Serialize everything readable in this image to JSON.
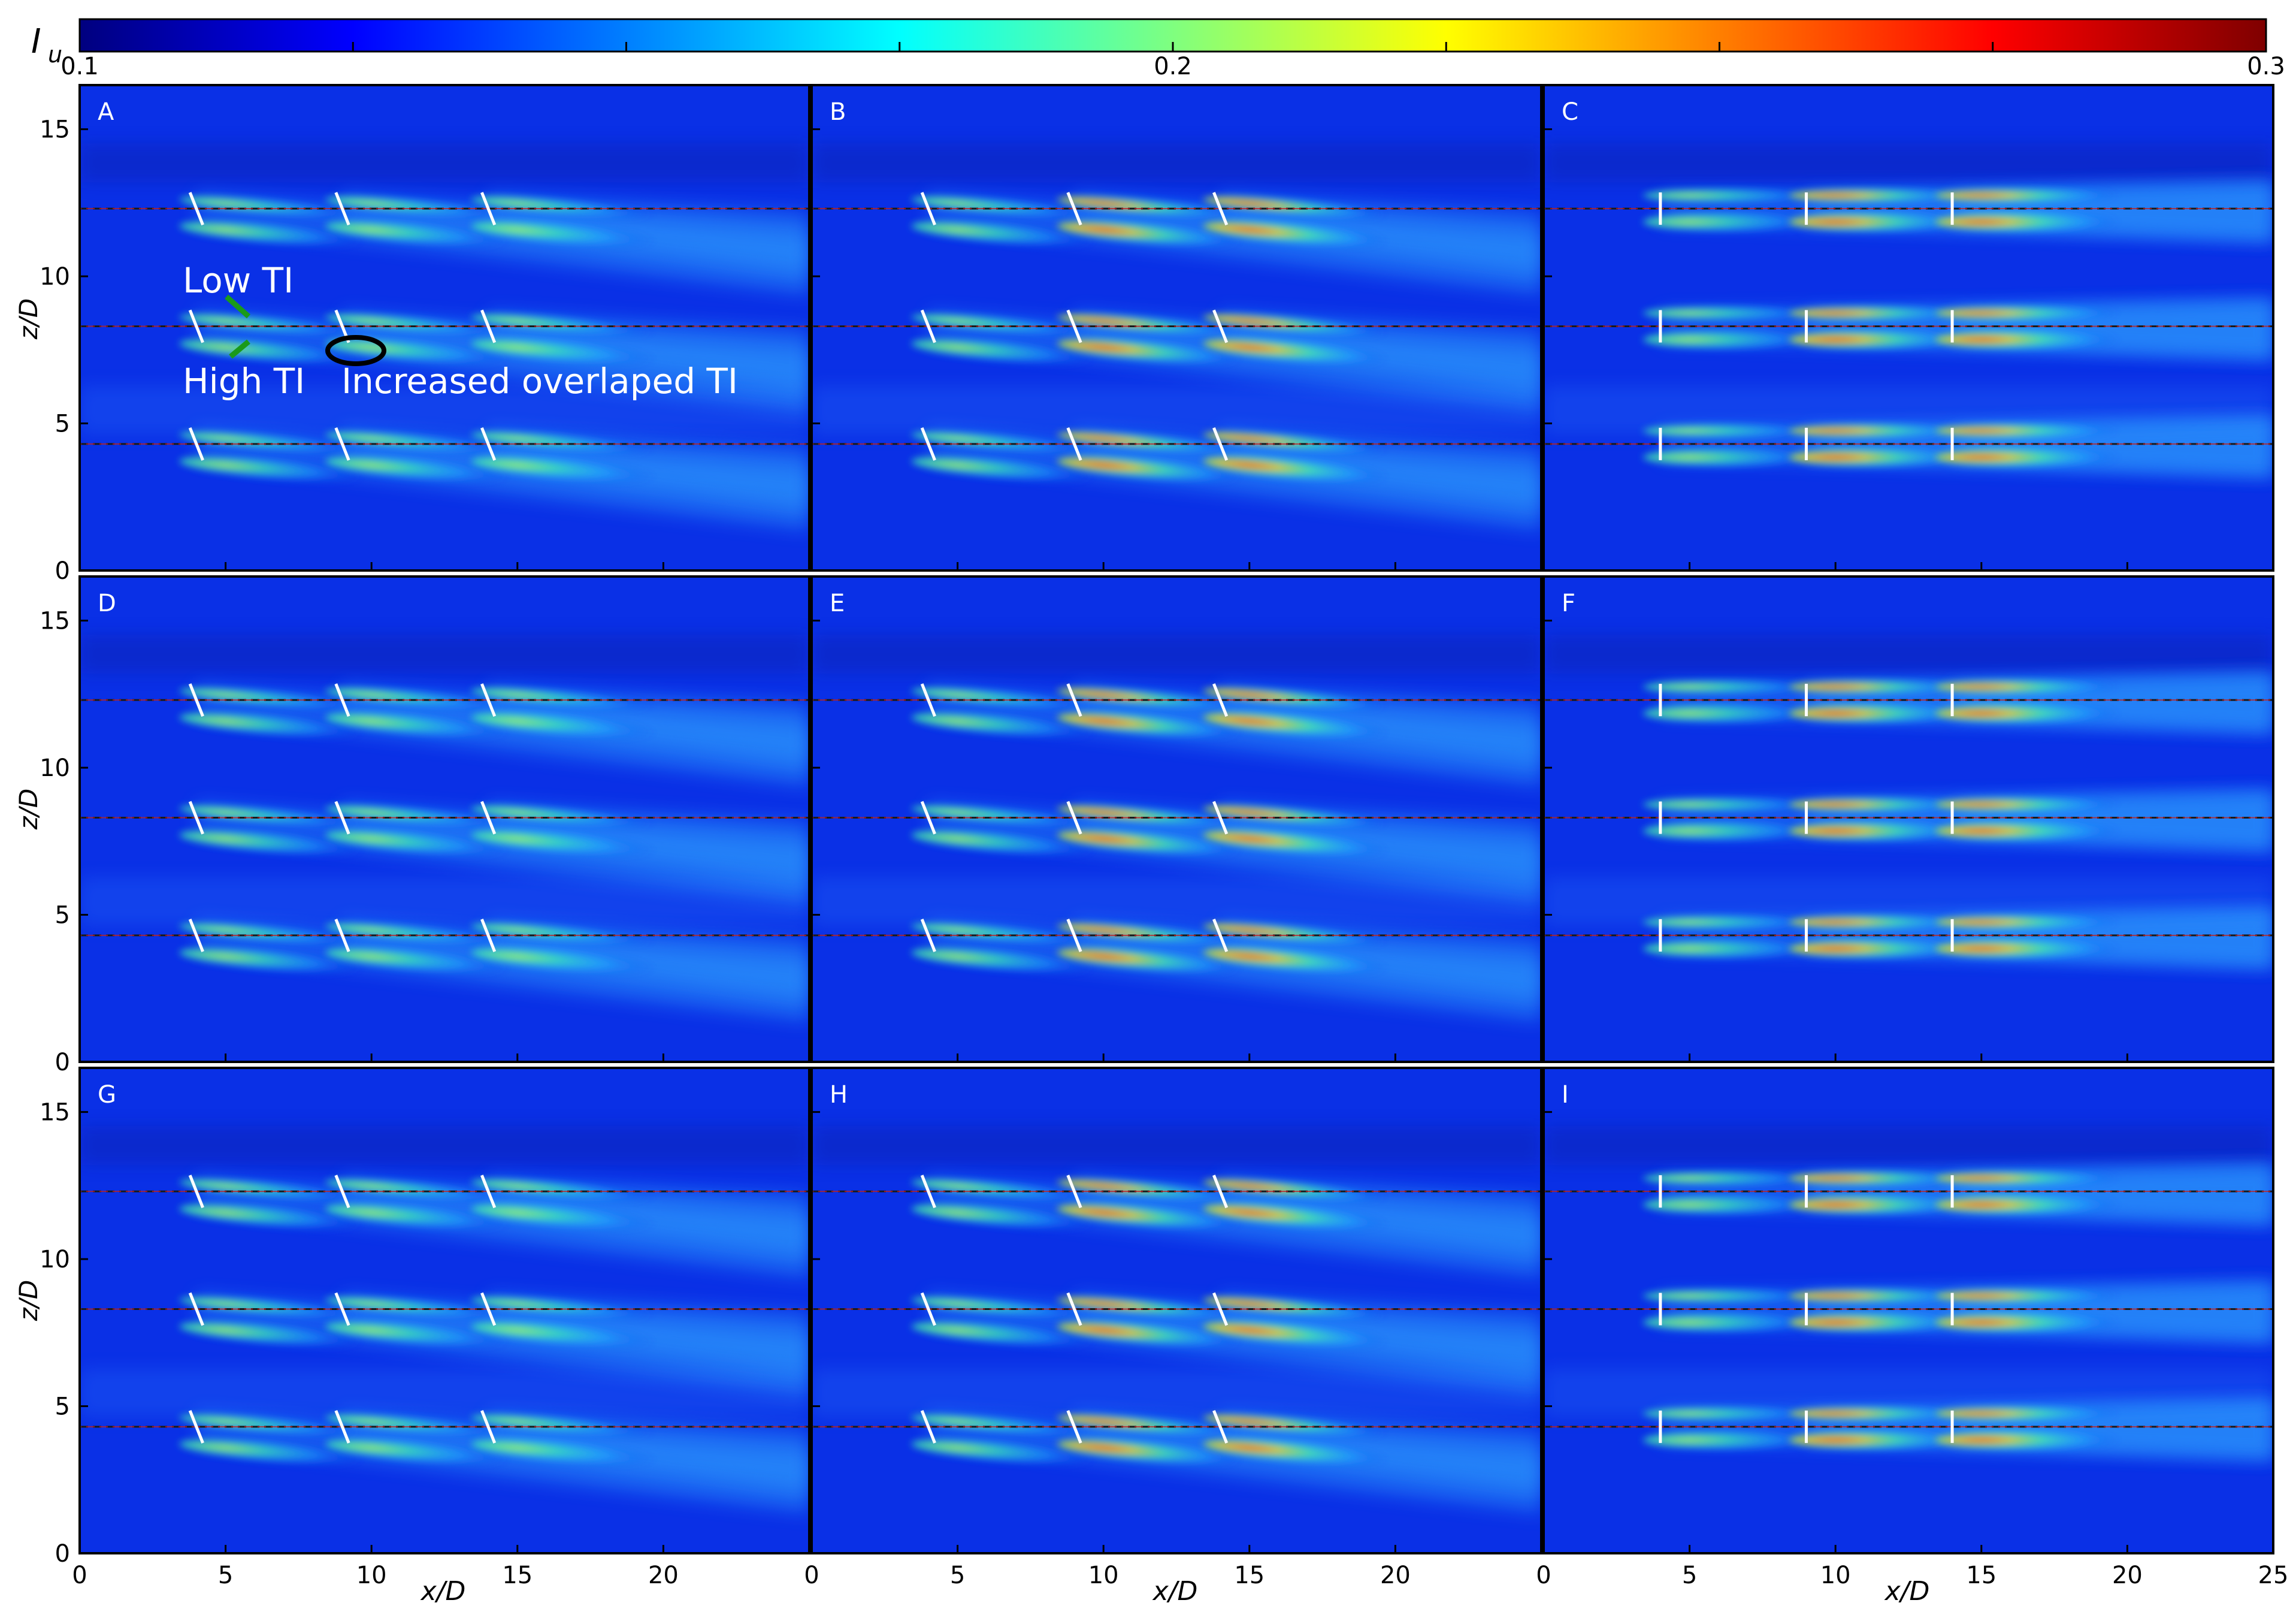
{
  "colorbar": {
    "label": "I",
    "label_sub": "u",
    "ticks": [
      "0.1",
      "0.2",
      "0.3"
    ],
    "vmin": 0.1,
    "vmax": 0.3,
    "colormap": [
      "#00007f",
      "#0000ff",
      "#007fff",
      "#00ffff",
      "#7fff7f",
      "#ffff00",
      "#ff7f00",
      "#ff0000",
      "#7f0000"
    ]
  },
  "axes": {
    "xlabel": "x/D",
    "ylabel": "z/D",
    "xlim": [
      0,
      25
    ],
    "ylim": [
      0,
      16.5
    ],
    "xticks": [
      0,
      5,
      10,
      15,
      20,
      25
    ],
    "yticks": [
      0,
      5,
      10,
      15
    ],
    "xtick_labels_left": [
      "0",
      "5",
      "10",
      "15",
      "20"
    ],
    "xtick_labels_middle": [
      "0",
      "5",
      "10",
      "15",
      "20"
    ],
    "xtick_labels_right": [
      "0",
      "5",
      "10",
      "15",
      "20",
      "25"
    ],
    "ytick_labels": [
      "0",
      "5",
      "10",
      "15"
    ]
  },
  "annotations": {
    "low_ti": "Low TI",
    "high_ti": "High TI",
    "overlap": "Increased overlaped TI"
  },
  "chart_data": {
    "type": "heatmap",
    "background_color": "#0a30e6",
    "wake_color_low": "#30e0c0",
    "wake_color_high": "#ff2a00",
    "row_centerlines_zD": [
      12.3,
      8.3,
      4.3
    ],
    "turbine_columns_xD": [
      4,
      9,
      14
    ],
    "panels": [
      {
        "label": "A",
        "yawed": true,
        "intensity": 0.55
      },
      {
        "label": "B",
        "yawed": true,
        "intensity": 0.85
      },
      {
        "label": "C",
        "yawed": false,
        "intensity": 1.0
      },
      {
        "label": "D",
        "yawed": true,
        "intensity": 0.5
      },
      {
        "label": "E",
        "yawed": true,
        "intensity": 0.8
      },
      {
        "label": "F",
        "yawed": false,
        "intensity": 1.0
      },
      {
        "label": "G",
        "yawed": true,
        "intensity": 0.5
      },
      {
        "label": "H",
        "yawed": true,
        "intensity": 0.85
      },
      {
        "label": "I",
        "yawed": false,
        "intensity": 1.0
      }
    ]
  }
}
